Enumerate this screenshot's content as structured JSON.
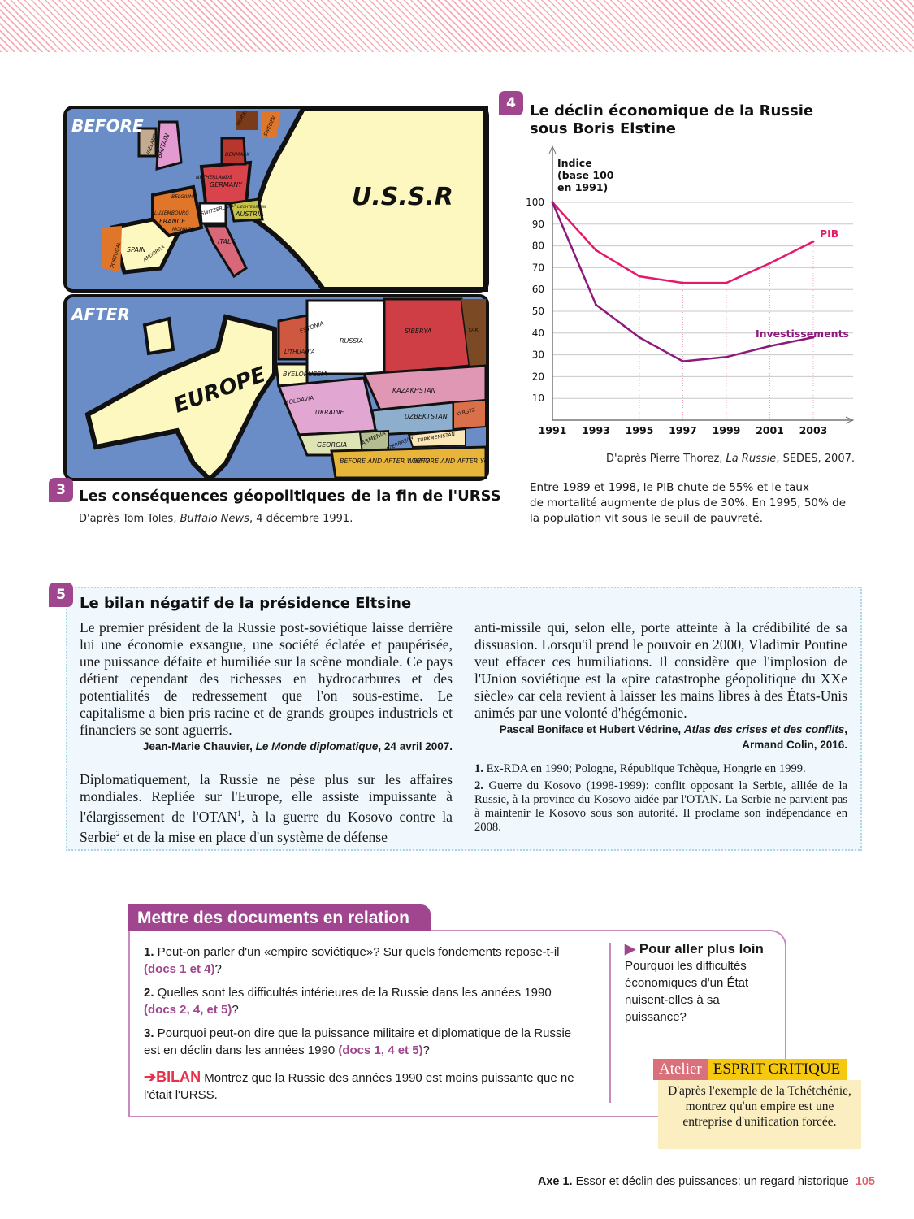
{
  "doc3": {
    "number": "3",
    "title": "Les conséquences géopolitiques de la fin de l'URSS",
    "source_prefix": "D'après Tom Toles, ",
    "source_work": "Buffalo News",
    "source_suffix": ", 4 décembre 1991.",
    "cartoon": {
      "before_title": "BEFORE",
      "after_title": "AFTER",
      "before_labels": [
        "IRELAND",
        "BRITAIN",
        "NORW.",
        "SWEDEN",
        "DENMARK",
        "NETHERLANDS",
        "GERMANY",
        "BELGIUM",
        "SWITZERLAND",
        "LIECHTENSTEIN",
        "LUXEMBOURG",
        "FRANCE",
        "AUSTRIA",
        "MONACO",
        "ITALY",
        "PORTUGAL",
        "SPAIN",
        "ANDORRA",
        "U.S.S.R"
      ],
      "after_labels": [
        "EUROPE",
        "ESTONIA",
        "LITHUANIA",
        "RUSSIA",
        "SIBERYA",
        "YAK",
        "BYELORUSSIA",
        "KAZAKHSTAN",
        "MOLDAVIA",
        "UKRAINE",
        "UZBEKTSTAN",
        "KYRGYZ",
        "GEORGIA",
        "ARMENIA",
        "AZERBAIJAN",
        "TURKMENISTAN",
        "BEFORE AND AFTER WHAT?",
        "BEFORE AND AFTER YOU BUNKED"
      ]
    }
  },
  "doc4": {
    "number": "4",
    "title_line1": "Le déclin économique de la Russie",
    "title_line2": "sous Boris Elstine",
    "source_prefix": "D'après Pierre Thorez, ",
    "source_work": "La Russie",
    "source_suffix": ", SEDES, 2007.",
    "caption_lines": [
      "Entre 1989 et 1998, le PIB chute de 55% et le taux",
      "de mortalité augmente de plus de 30%. En 1995, 50% de",
      "la population vit sous le seuil de pauvreté."
    ]
  },
  "chart_data": {
    "type": "line",
    "title": "",
    "ylabel_lines": [
      "Indice",
      "(base 100",
      "en 1991)"
    ],
    "x": [
      1991,
      1993,
      1995,
      1997,
      1999,
      2001,
      2003
    ],
    "xticks": [
      "1991",
      "1993",
      "1995",
      "1997",
      "1999",
      "2001",
      "2003"
    ],
    "yticks": [
      "10",
      "20",
      "30",
      "40",
      "50",
      "60",
      "70",
      "80",
      "90",
      "100"
    ],
    "ylim": [
      0,
      100
    ],
    "grid": true,
    "series": [
      {
        "name": "PIB",
        "values": [
          100,
          78,
          66,
          63,
          63,
          72,
          82
        ],
        "color": "#e6186a"
      },
      {
        "name": "Investissements",
        "values": [
          100,
          53,
          38,
          27,
          29,
          34,
          38
        ],
        "color": "#8c1a7c"
      }
    ]
  },
  "doc5": {
    "number": "5",
    "title": "Le bilan négatif de la présidence Eltsine",
    "p1": "Le premier président de la Russie post-soviétique laisse derrière lui une économie exsangue, une société éclatée et paupérisée, une puissance défaite et humiliée sur la scène mondiale. Ce pays détient cependant des richesses en hydrocarbures et des potentialités de redressement que l'on sous-estime. Le capitalisme a bien pris racine et de grands groupes industriels et financiers se sont aguerris.",
    "cite1_author": "Jean-Marie Chauvier, ",
    "cite1_work": "Le Monde diplomatique",
    "cite1_suffix": ", 24 avril 2007.",
    "p2a": "Diplomatiquement, la Russie ne pèse plus sur les affaires mondiales. Repliée sur l'Europe, elle assiste impuissante à l'élargissement de l'OTAN",
    "sup1": "1",
    "p2b": ", à la guerre du Kosovo contre la Serbie",
    "sup2": "2",
    "p2c": " et de la mise en place d'un système de défense",
    "p3": "anti-missile qui, selon elle, porte atteinte à la crédibilité de sa dissuasion. Lorsqu'il prend le pouvoir en 2000, Vladimir Poutine veut effacer ces humiliations. Il considère que l'implosion de l'Union soviétique est la «pire catastrophe géopolitique du XXe siècle» car cela revient à laisser les mains libres à des États-Unis animés par une volonté d'hégémonie.",
    "cite2_author": "Pascal Boniface et Hubert Védrine, ",
    "cite2_work": "Atlas des crises et des conflits",
    "cite2_suffix": ",",
    "cite2_line2": "Armand Colin, 2016.",
    "notes": [
      {
        "n": "1.",
        "text": " Ex-RDA en 1990; Pologne, République Tchèque, Hongrie en 1999."
      },
      {
        "n": "2.",
        "text": " Guerre du Kosovo (1998-1999): conflit opposant la Serbie, alliée de la Russie, à la province du Kosovo aidée par l'OTAN. La Serbie ne parvient pas à maintenir le Kosovo sous son autorité. Il proclame son indépendance en 2008."
      }
    ]
  },
  "exercise": {
    "header": "Mettre des documents en relation",
    "questions": [
      {
        "n": "1.",
        "text": " Peut-on parler d'un «empire soviétique»? Sur quels fondements repose-t-il ",
        "ref": "(docs 1 et 4)",
        "end": "?"
      },
      {
        "n": "2.",
        "text": " Quelles sont les difficultés intérieures de la Russie dans les années 1990 ",
        "ref": "(docs 2, 4, et 5)",
        "end": "?"
      },
      {
        "n": "3.",
        "text": " Pourquoi peut-on dire que la puissance militaire et diplomatique de la Russie est en déclin dans les années 1990 ",
        "ref": "(docs 1, 4 et 5)",
        "end": "?"
      }
    ],
    "bilan_label": "BILAN",
    "bilan_text": " Montrez que la Russie des années 1990 est moins puissante que ne l'était l'URSS.",
    "further_title": "Pour aller plus loin",
    "further_text": "Pourquoi les difficultés économiques d'un État nuisent-elles à sa puissance?",
    "atelier_label": "Atelier",
    "atelier_title": "ESPRIT CRITIQUE",
    "atelier_text": "D'après l'exemple de la Tchétchénie, montrez qu'un empire est une entreprise d'unification forcée."
  },
  "footer": {
    "axe": "Axe 1.",
    "title": " Essor et déclin des puissances: un regard historique",
    "page": "105"
  },
  "colors": {
    "accent": "#a0468f",
    "pink": "#e6186a",
    "footer_page": "#e0606e",
    "atelier_red": "#d9707a",
    "atelier_yellow": "#f6c90e",
    "atelier_bg": "#fbefc2",
    "doc5_bg": "#f0f8fd"
  }
}
